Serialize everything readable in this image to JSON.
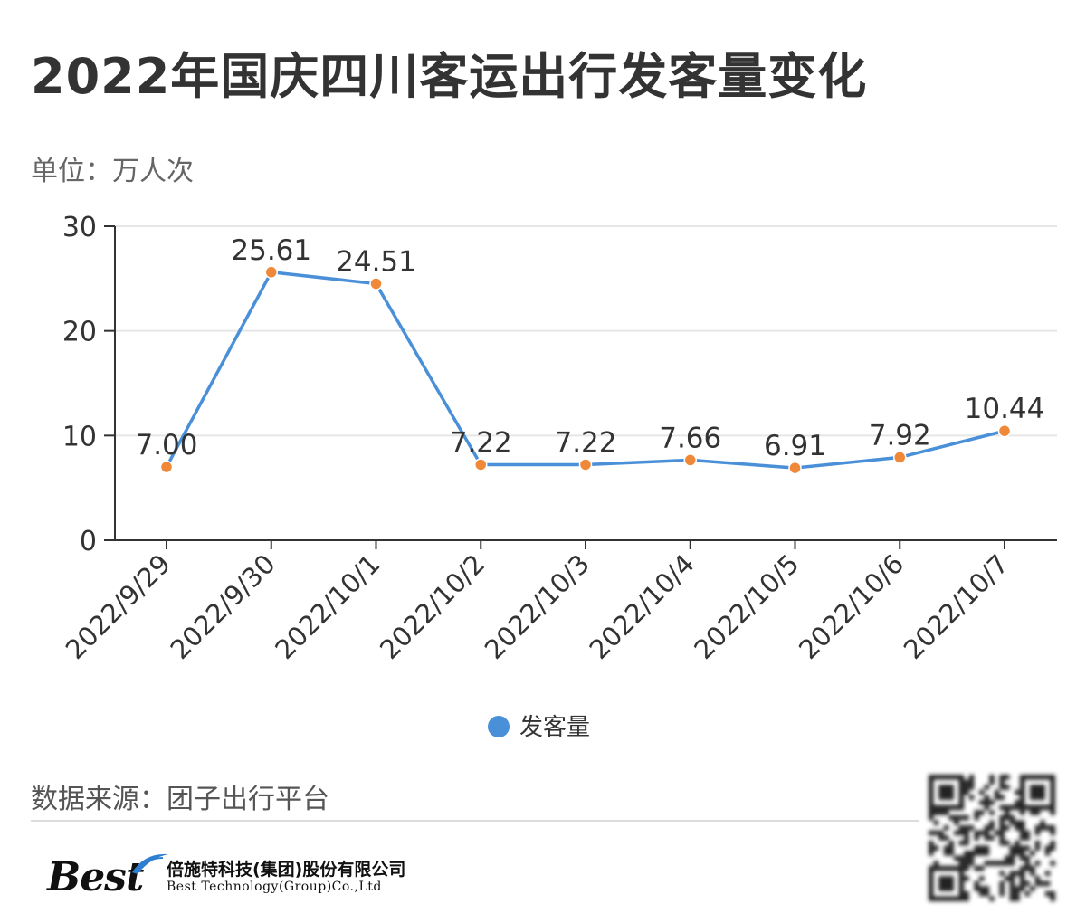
{
  "header": {
    "title": "2022年国庆四川客运出行发客量变化",
    "unit_label": "单位：万人次"
  },
  "chart_data": {
    "type": "line",
    "categories": [
      "2022/9/29",
      "2022/9/30",
      "2022/10/1",
      "2022/10/2",
      "2022/10/3",
      "2022/10/4",
      "2022/10/5",
      "2022/10/6",
      "2022/10/7"
    ],
    "series": [
      {
        "name": "发客量",
        "values": [
          7.0,
          25.61,
          24.51,
          7.22,
          7.22,
          7.66,
          6.91,
          7.92,
          10.44
        ],
        "labels": [
          "7.00",
          "25.61",
          "24.51",
          "7.22",
          "7.22",
          "7.66",
          "6.91",
          "7.92",
          "10.44"
        ]
      }
    ],
    "ylim": [
      0,
      30
    ],
    "yticks": [
      0,
      10,
      20,
      30
    ],
    "grid": true,
    "legend_position": "bottom-center",
    "line_color": "#4a90d9",
    "marker_color": "#f0883a"
  },
  "footer": {
    "source": "数据来源：团子出行平台",
    "logo_mark": "Best",
    "company_cn": "倍施特科技(集团)股份有限公司",
    "company_en": "Best Technology(Group)Co.,Ltd"
  }
}
